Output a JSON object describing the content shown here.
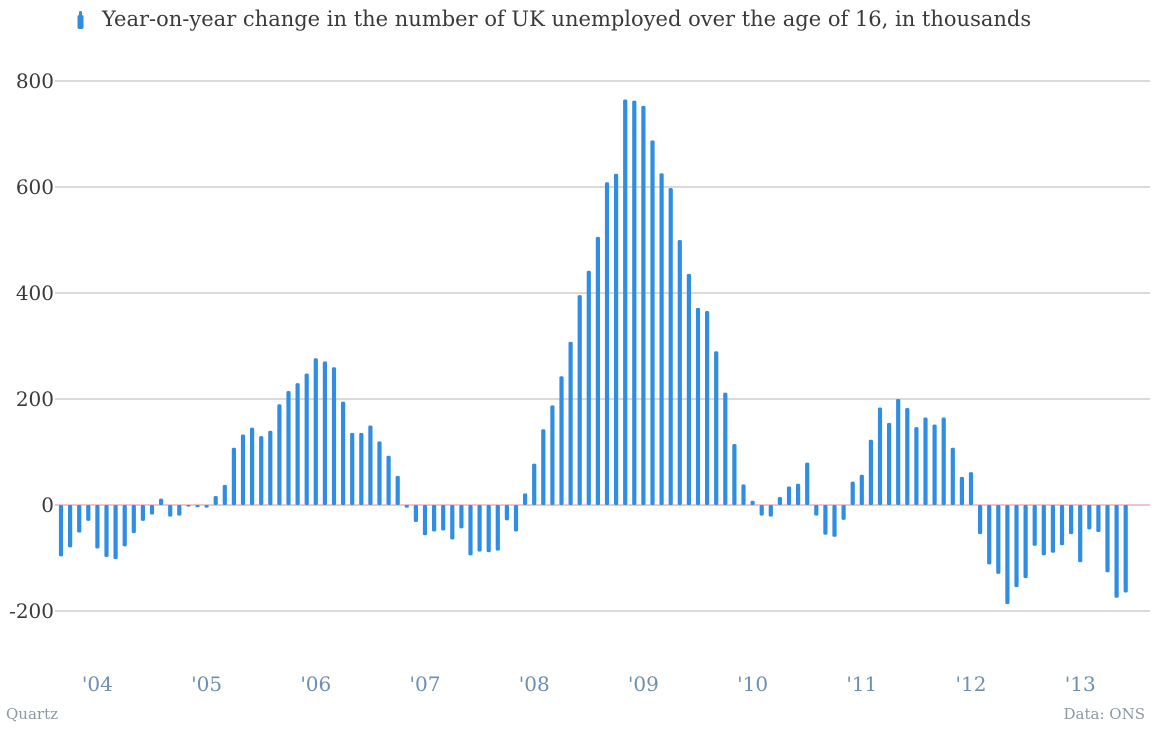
{
  "chart_data": {
    "type": "bar",
    "title": "Year-on-year change in the number of UK unemployed over the age of 16, in thousands",
    "xlabel": "",
    "ylabel": "",
    "ylim": [
      -300,
      820
    ],
    "yticks": [
      -200,
      0,
      200,
      400,
      600,
      800
    ],
    "ytick_labels": [
      "-200",
      "0",
      "200",
      "400",
      "600",
      "800"
    ],
    "grid": true,
    "legend_position": "top-left",
    "x_tick_labels": [
      "'04",
      "'05",
      "'06",
      "'07",
      "'08",
      "'09",
      "'10",
      "'11",
      "'12",
      "'13"
    ],
    "x_tick_months": [
      4,
      16,
      28,
      40,
      52,
      64,
      76,
      88,
      100,
      112
    ],
    "series": [
      {
        "name": "Year-on-year change in the number of UK unemployed over the age of 16, in thousands",
        "color": "#2f8ee3",
        "values": [
          -97,
          -80,
          -52,
          -30,
          -82,
          -98,
          -102,
          -78,
          -53,
          -30,
          -18,
          12,
          -22,
          -20,
          -3,
          -4,
          -5,
          17,
          38,
          108,
          133,
          146,
          130,
          140,
          190,
          215,
          230,
          248,
          277,
          271,
          260,
          195,
          136,
          136,
          150,
          120,
          93,
          55,
          -5,
          -32,
          -57,
          -50,
          -48,
          -65,
          -44,
          -95,
          -88,
          -89,
          -86,
          -29,
          -50,
          22,
          78,
          143,
          188,
          243,
          308,
          396,
          442,
          506,
          609,
          625,
          765,
          763,
          753,
          688,
          626,
          598,
          500,
          436,
          372,
          366,
          290,
          212,
          115,
          39,
          8,
          -20,
          -22,
          15,
          35,
          40,
          80,
          -20,
          -56,
          -60,
          -28,
          44,
          57,
          123,
          184,
          155,
          200,
          183,
          147,
          165,
          152,
          165,
          108,
          53,
          62,
          -55,
          -112,
          -130,
          -187,
          -155,
          -138,
          -77,
          -95,
          -90,
          -76,
          -55,
          -108,
          -46,
          -51,
          -127,
          -175,
          -165
        ]
      }
    ]
  },
  "legend": {
    "label": "Year-on-year change in the number of UK unemployed over the age of 16, in thousands",
    "icon": "bar-icon"
  },
  "footer": {
    "source_left": "Quartz",
    "source_right": "Data: ONS"
  },
  "colors": {
    "bar": "#2f8ee3",
    "grid": "#b5b5b5",
    "zero_line": "#e8a0b4",
    "axis_text": "#3a3a3a",
    "xtick_text": "#6d8fb0"
  }
}
